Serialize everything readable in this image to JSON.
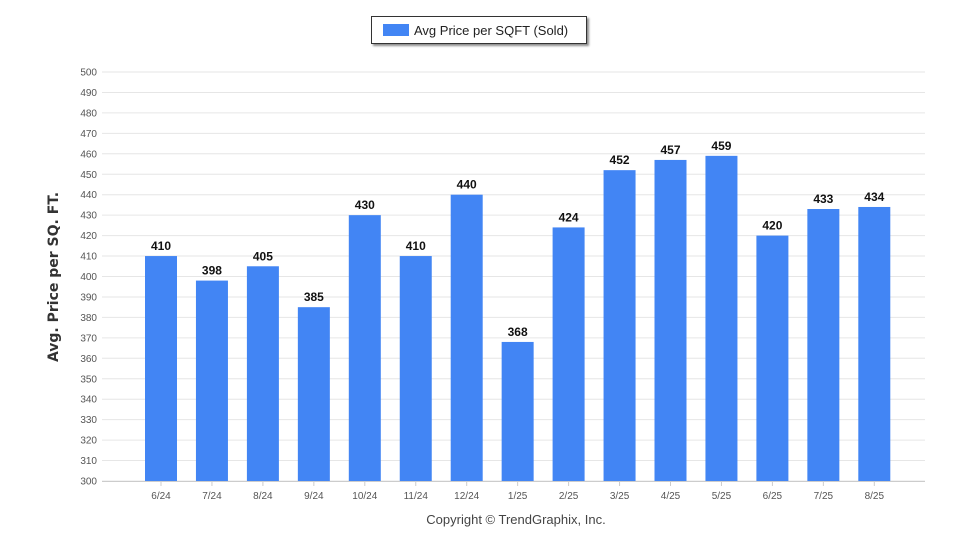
{
  "legend": {
    "label": "Avg Price per SQFT (Sold)"
  },
  "copyright": "Copyright © TrendGraphix, Inc.",
  "colors": {
    "bar": "#4285f4",
    "grid": "#e6e6e6",
    "axis": "#cccccc"
  },
  "chart_data": {
    "type": "bar",
    "title": "",
    "xlabel": "",
    "ylabel": "Avg. Price per SQ. FT.",
    "ylim": [
      300,
      500
    ],
    "ytick_step": 10,
    "grid": true,
    "legend_position": "top-center",
    "categories": [
      "6/24",
      "7/24",
      "8/24",
      "9/24",
      "10/24",
      "11/24",
      "12/24",
      "1/25",
      "2/25",
      "3/25",
      "4/25",
      "5/25",
      "6/25",
      "7/25",
      "8/25"
    ],
    "series": [
      {
        "name": "Avg Price per SQFT (Sold)",
        "values": [
          410,
          398,
          405,
          385,
          430,
          410,
          440,
          368,
          424,
          452,
          457,
          459,
          420,
          433,
          434
        ]
      }
    ]
  }
}
